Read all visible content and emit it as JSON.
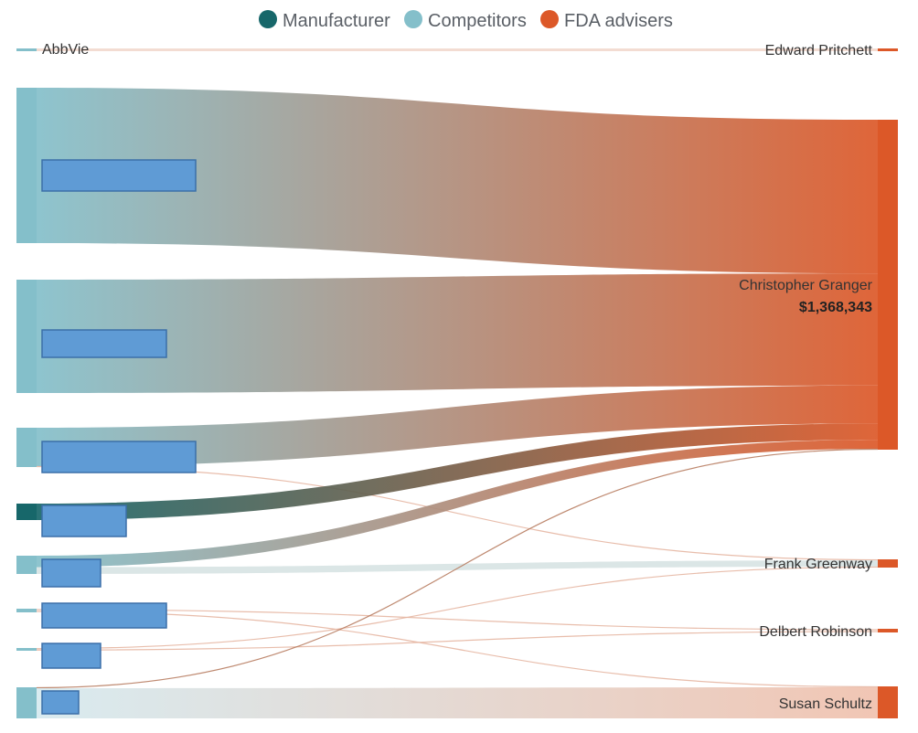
{
  "legend": [
    {
      "label": "Manufacturer",
      "color": "#17676a"
    },
    {
      "label": "Competitors",
      "color": "#84bfca"
    },
    {
      "label": "FDA advisers",
      "color": "#dc5828"
    }
  ],
  "colors": {
    "manufacturer": "#17676a",
    "competitor": "#84bfca",
    "adviser": "#dc5828"
  },
  "sources": [
    {
      "id": "abbvie",
      "label": "AbbVie",
      "type": "competitor",
      "redacted": false
    },
    {
      "id": "src2",
      "label": "",
      "type": "competitor",
      "redacted": true
    },
    {
      "id": "src3",
      "label": "",
      "type": "competitor",
      "redacted": true
    },
    {
      "id": "src4",
      "label": "",
      "type": "competitor",
      "redacted": true
    },
    {
      "id": "src5",
      "label": "",
      "type": "manufacturer",
      "redacted": true
    },
    {
      "id": "src6",
      "label": "",
      "type": "competitor",
      "redacted": true
    },
    {
      "id": "src7",
      "label": "",
      "type": "competitor",
      "redacted": true
    },
    {
      "id": "src8",
      "label": "",
      "type": "competitor",
      "redacted": true
    },
    {
      "id": "src9",
      "label": "",
      "type": "competitor",
      "redacted": true
    }
  ],
  "targets": [
    {
      "id": "pritchett",
      "label": "Edward Pritchett",
      "value": ""
    },
    {
      "id": "granger",
      "label": "Christopher Granger",
      "value": "$1,368,343"
    },
    {
      "id": "greenway",
      "label": "Frank Greenway",
      "value": ""
    },
    {
      "id": "robinson",
      "label": "Delbert Robinson",
      "value": ""
    },
    {
      "id": "schultz",
      "label": "Susan Schultz",
      "value": ""
    }
  ],
  "chart_data": {
    "type": "sankey",
    "flows": [
      {
        "source": "abbvie",
        "target": "pritchett",
        "weight": 1
      },
      {
        "source": "src2",
        "target": "granger",
        "weight": 170
      },
      {
        "source": "src3",
        "target": "granger",
        "weight": 124
      },
      {
        "source": "src4",
        "target": "granger",
        "weight": 42
      },
      {
        "source": "src4",
        "target": "greenway",
        "weight": 1
      },
      {
        "source": "src5",
        "target": "granger",
        "weight": 18
      },
      {
        "source": "src6",
        "target": "granger",
        "weight": 10
      },
      {
        "source": "src6",
        "target": "greenway",
        "weight": 6
      },
      {
        "source": "src7",
        "target": "robinson",
        "weight": 1
      },
      {
        "source": "src7",
        "target": "schultz",
        "weight": 1
      },
      {
        "source": "src8",
        "target": "greenway",
        "weight": 1
      },
      {
        "source": "src8",
        "target": "robinson",
        "weight": 1
      },
      {
        "source": "src9",
        "target": "granger",
        "weight": 1
      },
      {
        "source": "src9",
        "target": "schultz",
        "weight": 33
      }
    ]
  }
}
